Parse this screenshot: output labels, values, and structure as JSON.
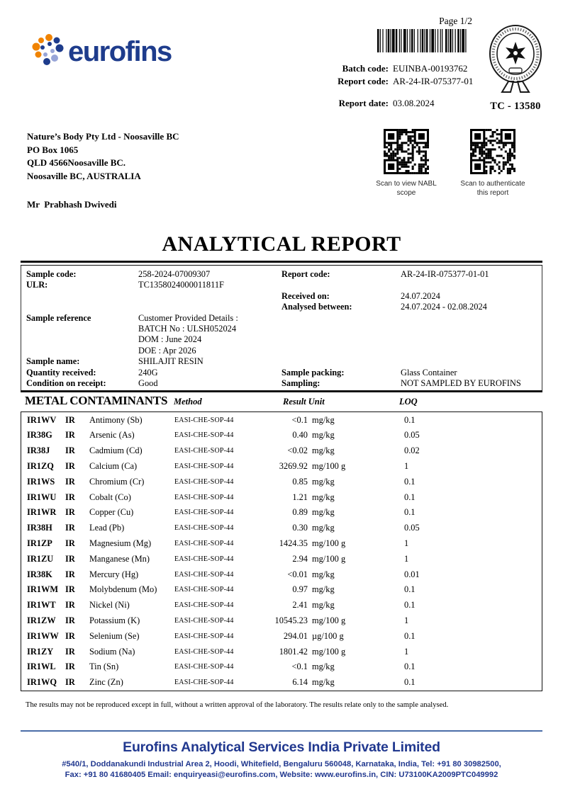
{
  "colors": {
    "brand_navy": "#1e3c8c",
    "logo_orange": "#f08300",
    "logo_periwinkle": "#98a5d8",
    "footer_blue": "#21388f",
    "rule_blue": "#4a6da8",
    "text": "#000000"
  },
  "header": {
    "logo_text": "eurofins",
    "page_label": "Page 1/2",
    "batch_code_label": "Batch code:",
    "batch_code": "EUINBA-00193762",
    "report_code_label": "Report code:",
    "report_code": "AR-24-IR-075377-01",
    "report_date_label": "Report date:",
    "report_date": "03.08.2024",
    "accreditation_code": "TC - 13580"
  },
  "recipient": {
    "lines": [
      "Nature’s Body Pty Ltd - Noosaville BC",
      "PO Box 1065",
      "QLD 4566Noosaville BC.",
      "Noosaville BC, AUSTRALIA"
    ],
    "contact": "Mr  Prabhash Dwivedi"
  },
  "qr": {
    "left_caption": "Scan to view NABL scope",
    "right_caption_line1": "Scan to authenticate",
    "right_caption_line2": "this report"
  },
  "title": "ANALYTICAL REPORT",
  "sample_info": {
    "sample_code_label": "Sample code:",
    "sample_code": "258-2024-07009307",
    "ulr_label": "ULR:",
    "ulr": "TC1358024000011811F",
    "report_code_label": "Report code:",
    "report_code": "AR-24-IR-075377-01-01",
    "received_on_label": "Received on:",
    "received_on": "24.07.2024",
    "analysed_between_label": "Analysed between:",
    "analysed_between": "24.07.2024 - 02.08.2024",
    "sample_reference_label": "Sample reference",
    "reference_lines": [
      "Customer Provided Details :",
      "BATCH No : ULSH052024",
      "DOM : June 2024",
      "DOE : Apr 2026"
    ],
    "sample_name_label": "Sample name:",
    "sample_name": "SHILAJIT RESIN",
    "quantity_received_label": "Quantity received:",
    "quantity_received": "240G",
    "condition_label": "Condition on receipt:",
    "condition": "Good",
    "sample_packing_label": "Sample packing:",
    "sample_packing": "Glass Container",
    "sampling_label": "Sampling:",
    "sampling": "NOT SAMPLED BY EUROFINS"
  },
  "results_table": {
    "section_title": "METAL CONTAMINANTS",
    "col_method": "Method",
    "col_result_unit": "Result Unit",
    "col_loq": "LOQ",
    "rows": [
      {
        "code": "IR1WV",
        "type": "IR",
        "name": "Antimony (Sb)",
        "method": "EASI-CHE-SOP-44",
        "result": "<0.1",
        "unit": "mg/kg",
        "loq": "0.1"
      },
      {
        "code": "IR38G",
        "type": "IR",
        "name": "Arsenic (As)",
        "method": "EASI-CHE-SOP-44",
        "result": "0.40",
        "unit": "mg/kg",
        "loq": "0.05"
      },
      {
        "code": "IR38J",
        "type": "IR",
        "name": "Cadmium (Cd)",
        "method": "EASI-CHE-SOP-44",
        "result": "<0.02",
        "unit": "mg/kg",
        "loq": "0.02"
      },
      {
        "code": "IR1ZQ",
        "type": "IR",
        "name": "Calcium (Ca)",
        "method": "EASI-CHE-SOP-44",
        "result": "3269.92",
        "unit": "mg/100 g",
        "loq": "1"
      },
      {
        "code": "IR1WS",
        "type": "IR",
        "name": "Chromium (Cr)",
        "method": "EASI-CHE-SOP-44",
        "result": "0.85",
        "unit": "mg/kg",
        "loq": "0.1"
      },
      {
        "code": "IR1WU",
        "type": "IR",
        "name": "Cobalt (Co)",
        "method": "EASI-CHE-SOP-44",
        "result": "1.21",
        "unit": "mg/kg",
        "loq": "0.1"
      },
      {
        "code": "IR1WR",
        "type": "IR",
        "name": "Copper (Cu)",
        "method": "EASI-CHE-SOP-44",
        "result": "0.89",
        "unit": "mg/kg",
        "loq": "0.1"
      },
      {
        "code": "IR38H",
        "type": "IR",
        "name": "Lead (Pb)",
        "method": "EASI-CHE-SOP-44",
        "result": "0.30",
        "unit": "mg/kg",
        "loq": "0.05"
      },
      {
        "code": "IR1ZP",
        "type": "IR",
        "name": "Magnesium (Mg)",
        "method": "EASI-CHE-SOP-44",
        "result": "1424.35",
        "unit": "mg/100 g",
        "loq": "1"
      },
      {
        "code": "IR1ZU",
        "type": "IR",
        "name": "Manganese (Mn)",
        "method": "EASI-CHE-SOP-44",
        "result": "2.94",
        "unit": "mg/100 g",
        "loq": "1"
      },
      {
        "code": "IR38K",
        "type": "IR",
        "name": "Mercury (Hg)",
        "method": "EASI-CHE-SOP-44",
        "result": "<0.01",
        "unit": "mg/kg",
        "loq": "0.01"
      },
      {
        "code": "IR1WM",
        "type": "IR",
        "name": "Molybdenum (Mo)",
        "method": "EASI-CHE-SOP-44",
        "result": "0.97",
        "unit": "mg/kg",
        "loq": "0.1"
      },
      {
        "code": "IR1WT",
        "type": "IR",
        "name": "Nickel (Ni)",
        "method": "EASI-CHE-SOP-44",
        "result": "2.41",
        "unit": "mg/kg",
        "loq": "0.1"
      },
      {
        "code": "IR1ZW",
        "type": "IR",
        "name": "Potassium (K)",
        "method": "EASI-CHE-SOP-44",
        "result": "10545.23",
        "unit": "mg/100 g",
        "loq": "1"
      },
      {
        "code": "IR1WW",
        "type": "IR",
        "name": "Selenium (Se)",
        "method": "EASI-CHE-SOP-44",
        "result": "294.01",
        "unit": "µg/100 g",
        "loq": "0.1"
      },
      {
        "code": "IR1ZY",
        "type": "IR",
        "name": "Sodium (Na)",
        "method": "EASI-CHE-SOP-44",
        "result": "1801.42",
        "unit": "mg/100 g",
        "loq": "1"
      },
      {
        "code": "IR1WL",
        "type": "IR",
        "name": "Tin (Sn)",
        "method": "EASI-CHE-SOP-44",
        "result": "<0.1",
        "unit": "mg/kg",
        "loq": "0.1"
      },
      {
        "code": "IR1WQ",
        "type": "IR",
        "name": "Zinc (Zn)",
        "method": "EASI-CHE-SOP-44",
        "result": "6.14",
        "unit": "mg/kg",
        "loq": "0.1"
      }
    ]
  },
  "disclaimer": "The results may not be reproduced except in full, without a written approval of the laboratory. The results relate only to the sample analysed.",
  "footer": {
    "company": "Eurofins Analytical Services India Private Limited",
    "address_line1": "#540/1, Doddanakundi Industrial Area 2, Hoodi, Whitefield, Bengaluru 560048, Karnataka, India, Tel: +91 80 30982500,",
    "address_line2": "Fax: +91 80 41680405 Email: enquiryeasi@eurofins.com, Website: www.eurofins.in, CIN: U73100KA2009PTC049992"
  }
}
